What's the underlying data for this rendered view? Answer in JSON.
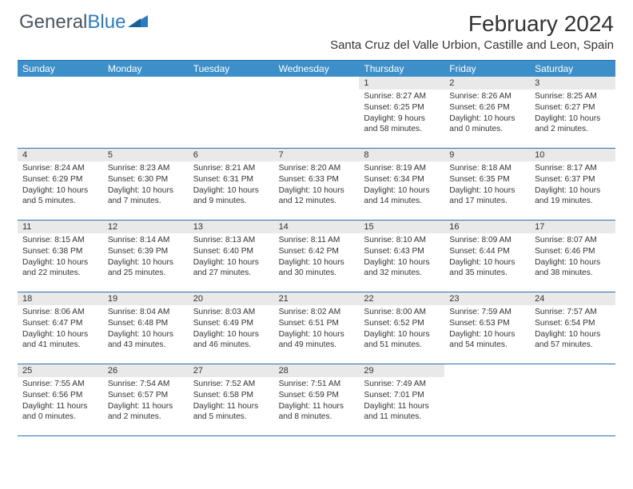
{
  "logo": {
    "text1": "General",
    "text2": "Blue"
  },
  "title": "February 2024",
  "location": "Santa Cruz del Valle Urbion, Castille and Leon, Spain",
  "colors": {
    "header_bg": "#3d8fc9",
    "header_text": "#ffffff",
    "date_bar_bg": "#e9e9e9",
    "border": "#2b6fa8",
    "logo_gray": "#4a5560",
    "logo_blue": "#2d7cc0",
    "body_bg": "#ffffff",
    "text": "#333333"
  },
  "day_names": [
    "Sunday",
    "Monday",
    "Tuesday",
    "Wednesday",
    "Thursday",
    "Friday",
    "Saturday"
  ],
  "weeks": [
    [
      {
        "empty": true
      },
      {
        "empty": true
      },
      {
        "empty": true
      },
      {
        "empty": true
      },
      {
        "date": "1",
        "sunrise": "Sunrise: 8:27 AM",
        "sunset": "Sunset: 6:25 PM",
        "daylight": "Daylight: 9 hours and 58 minutes."
      },
      {
        "date": "2",
        "sunrise": "Sunrise: 8:26 AM",
        "sunset": "Sunset: 6:26 PM",
        "daylight": "Daylight: 10 hours and 0 minutes."
      },
      {
        "date": "3",
        "sunrise": "Sunrise: 8:25 AM",
        "sunset": "Sunset: 6:27 PM",
        "daylight": "Daylight: 10 hours and 2 minutes."
      }
    ],
    [
      {
        "date": "4",
        "sunrise": "Sunrise: 8:24 AM",
        "sunset": "Sunset: 6:29 PM",
        "daylight": "Daylight: 10 hours and 5 minutes."
      },
      {
        "date": "5",
        "sunrise": "Sunrise: 8:23 AM",
        "sunset": "Sunset: 6:30 PM",
        "daylight": "Daylight: 10 hours and 7 minutes."
      },
      {
        "date": "6",
        "sunrise": "Sunrise: 8:21 AM",
        "sunset": "Sunset: 6:31 PM",
        "daylight": "Daylight: 10 hours and 9 minutes."
      },
      {
        "date": "7",
        "sunrise": "Sunrise: 8:20 AM",
        "sunset": "Sunset: 6:33 PM",
        "daylight": "Daylight: 10 hours and 12 minutes."
      },
      {
        "date": "8",
        "sunrise": "Sunrise: 8:19 AM",
        "sunset": "Sunset: 6:34 PM",
        "daylight": "Daylight: 10 hours and 14 minutes."
      },
      {
        "date": "9",
        "sunrise": "Sunrise: 8:18 AM",
        "sunset": "Sunset: 6:35 PM",
        "daylight": "Daylight: 10 hours and 17 minutes."
      },
      {
        "date": "10",
        "sunrise": "Sunrise: 8:17 AM",
        "sunset": "Sunset: 6:37 PM",
        "daylight": "Daylight: 10 hours and 19 minutes."
      }
    ],
    [
      {
        "date": "11",
        "sunrise": "Sunrise: 8:15 AM",
        "sunset": "Sunset: 6:38 PM",
        "daylight": "Daylight: 10 hours and 22 minutes."
      },
      {
        "date": "12",
        "sunrise": "Sunrise: 8:14 AM",
        "sunset": "Sunset: 6:39 PM",
        "daylight": "Daylight: 10 hours and 25 minutes."
      },
      {
        "date": "13",
        "sunrise": "Sunrise: 8:13 AM",
        "sunset": "Sunset: 6:40 PM",
        "daylight": "Daylight: 10 hours and 27 minutes."
      },
      {
        "date": "14",
        "sunrise": "Sunrise: 8:11 AM",
        "sunset": "Sunset: 6:42 PM",
        "daylight": "Daylight: 10 hours and 30 minutes."
      },
      {
        "date": "15",
        "sunrise": "Sunrise: 8:10 AM",
        "sunset": "Sunset: 6:43 PM",
        "daylight": "Daylight: 10 hours and 32 minutes."
      },
      {
        "date": "16",
        "sunrise": "Sunrise: 8:09 AM",
        "sunset": "Sunset: 6:44 PM",
        "daylight": "Daylight: 10 hours and 35 minutes."
      },
      {
        "date": "17",
        "sunrise": "Sunrise: 8:07 AM",
        "sunset": "Sunset: 6:46 PM",
        "daylight": "Daylight: 10 hours and 38 minutes."
      }
    ],
    [
      {
        "date": "18",
        "sunrise": "Sunrise: 8:06 AM",
        "sunset": "Sunset: 6:47 PM",
        "daylight": "Daylight: 10 hours and 41 minutes."
      },
      {
        "date": "19",
        "sunrise": "Sunrise: 8:04 AM",
        "sunset": "Sunset: 6:48 PM",
        "daylight": "Daylight: 10 hours and 43 minutes."
      },
      {
        "date": "20",
        "sunrise": "Sunrise: 8:03 AM",
        "sunset": "Sunset: 6:49 PM",
        "daylight": "Daylight: 10 hours and 46 minutes."
      },
      {
        "date": "21",
        "sunrise": "Sunrise: 8:02 AM",
        "sunset": "Sunset: 6:51 PM",
        "daylight": "Daylight: 10 hours and 49 minutes."
      },
      {
        "date": "22",
        "sunrise": "Sunrise: 8:00 AM",
        "sunset": "Sunset: 6:52 PM",
        "daylight": "Daylight: 10 hours and 51 minutes."
      },
      {
        "date": "23",
        "sunrise": "Sunrise: 7:59 AM",
        "sunset": "Sunset: 6:53 PM",
        "daylight": "Daylight: 10 hours and 54 minutes."
      },
      {
        "date": "24",
        "sunrise": "Sunrise: 7:57 AM",
        "sunset": "Sunset: 6:54 PM",
        "daylight": "Daylight: 10 hours and 57 minutes."
      }
    ],
    [
      {
        "date": "25",
        "sunrise": "Sunrise: 7:55 AM",
        "sunset": "Sunset: 6:56 PM",
        "daylight": "Daylight: 11 hours and 0 minutes."
      },
      {
        "date": "26",
        "sunrise": "Sunrise: 7:54 AM",
        "sunset": "Sunset: 6:57 PM",
        "daylight": "Daylight: 11 hours and 2 minutes."
      },
      {
        "date": "27",
        "sunrise": "Sunrise: 7:52 AM",
        "sunset": "Sunset: 6:58 PM",
        "daylight": "Daylight: 11 hours and 5 minutes."
      },
      {
        "date": "28",
        "sunrise": "Sunrise: 7:51 AM",
        "sunset": "Sunset: 6:59 PM",
        "daylight": "Daylight: 11 hours and 8 minutes."
      },
      {
        "date": "29",
        "sunrise": "Sunrise: 7:49 AM",
        "sunset": "Sunset: 7:01 PM",
        "daylight": "Daylight: 11 hours and 11 minutes."
      },
      {
        "empty": true
      },
      {
        "empty": true
      }
    ]
  ]
}
